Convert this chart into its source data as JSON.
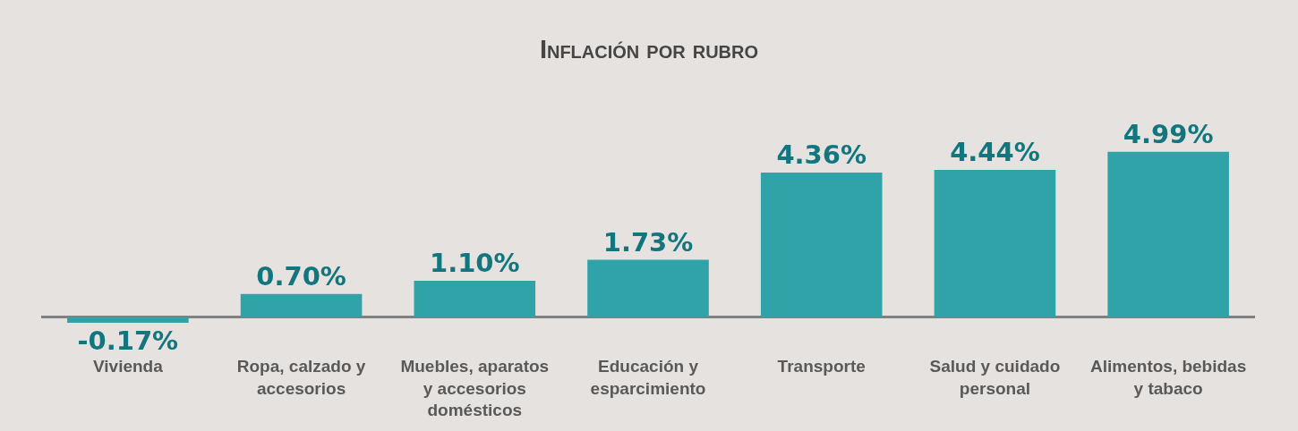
{
  "chart_data": {
    "type": "bar",
    "title": "Inflación por rubro",
    "categories": [
      "Vivienda",
      "Ropa, calzado y accesorios",
      "Muebles, aparatos y accesorios domésticos",
      "Educación y esparcimiento",
      "Transporte",
      "Salud y cuidado personal",
      "Alimentos, bebidas y tabaco"
    ],
    "values": [
      -0.17,
      0.7,
      1.1,
      1.73,
      4.36,
      4.44,
      4.99
    ],
    "value_labels": [
      "-0.17%",
      "0.70%",
      "1.10%",
      "1.73%",
      "4.36%",
      "4.44%",
      "4.99%"
    ],
    "color": "#2fa3a8"
  }
}
